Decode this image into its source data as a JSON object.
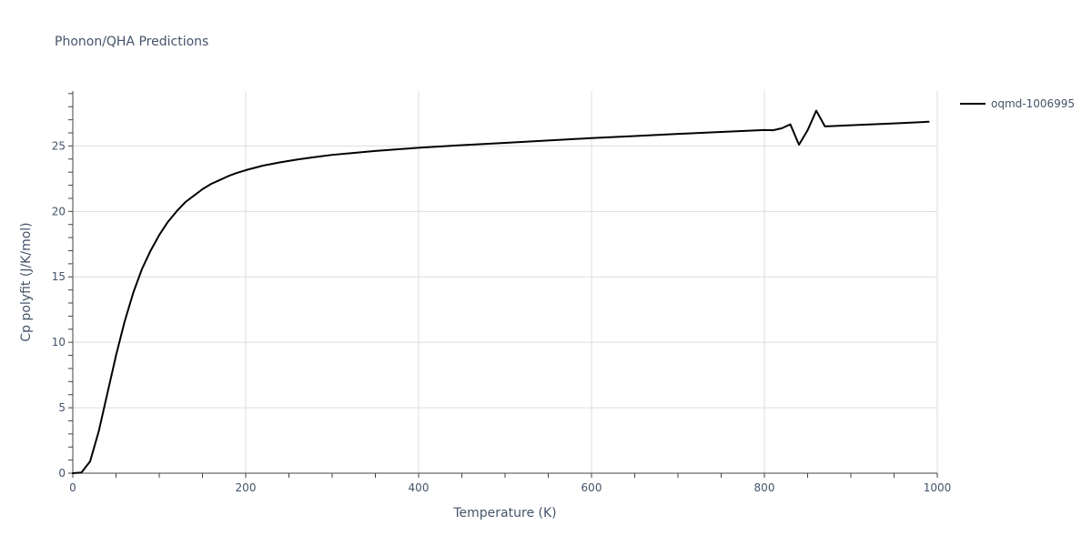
{
  "chart_data": {
    "type": "line",
    "title": "Phonon/QHA Predictions",
    "xlabel": "Temperature (K)",
    "ylabel": "Cp polyfit (J/K/mol)",
    "xlim": [
      0,
      1000
    ],
    "ylim": [
      0,
      29.2
    ],
    "x_ticks": [
      0,
      200,
      400,
      600,
      800,
      1000
    ],
    "x_tick_labels": [
      "0",
      "200",
      "400",
      "600",
      "800",
      "1000"
    ],
    "y_ticks": [
      0,
      5,
      10,
      15,
      20,
      25
    ],
    "y_tick_labels": [
      "0",
      "5",
      "10",
      "15",
      "20",
      "25"
    ],
    "grid": true,
    "legend_position": "top-right",
    "series": [
      {
        "name": "oqmd-1006995",
        "color": "#000000",
        "x": [
          0,
          10,
          20,
          30,
          40,
          50,
          60,
          70,
          80,
          90,
          100,
          110,
          120,
          130,
          140,
          150,
          160,
          170,
          180,
          190,
          200,
          220,
          240,
          260,
          280,
          300,
          350,
          400,
          450,
          500,
          550,
          600,
          650,
          700,
          750,
          800,
          810,
          820,
          830,
          840,
          850,
          860,
          870,
          880,
          900,
          950,
          990
        ],
        "y": [
          0,
          0.05,
          0.9,
          3.2,
          6.1,
          9.0,
          11.6,
          13.8,
          15.6,
          17.0,
          18.2,
          19.2,
          20.0,
          20.7,
          21.2,
          21.7,
          22.1,
          22.4,
          22.7,
          22.95,
          23.15,
          23.5,
          23.75,
          23.97,
          24.15,
          24.32,
          24.62,
          24.86,
          25.06,
          25.24,
          25.42,
          25.6,
          25.76,
          25.92,
          26.07,
          26.22,
          26.2,
          26.35,
          26.65,
          25.1,
          26.2,
          27.7,
          26.5,
          26.52,
          26.58,
          26.72,
          26.85
        ]
      }
    ]
  }
}
